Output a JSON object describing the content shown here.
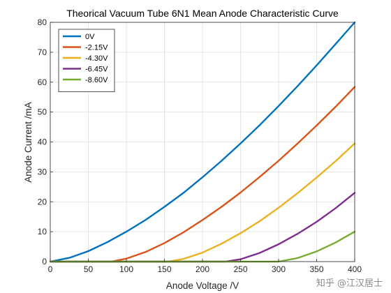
{
  "chart_data": {
    "type": "line",
    "title": "Theorical Vacuum Tube 6N1 Mean Anode Characteristic Curve",
    "xlabel": "Anode Voltage /V",
    "ylabel": "Anode Current /mA",
    "xlim": [
      0,
      400
    ],
    "ylim": [
      0,
      80
    ],
    "xticks": [
      0,
      50,
      100,
      150,
      200,
      250,
      300,
      350,
      400
    ],
    "yticks": [
      0,
      10,
      20,
      30,
      40,
      50,
      60,
      70,
      80
    ],
    "grid": true,
    "legend_position": "top-left",
    "series": [
      {
        "name": "0V",
        "color": "#0072BD",
        "x": [
          0,
          25,
          50,
          75,
          100,
          125,
          150,
          175,
          200,
          225,
          250,
          275,
          300,
          325,
          350,
          375,
          400
        ],
        "y": [
          0,
          1.25,
          3.5,
          6.5,
          10.0,
          13.9,
          18.3,
          23.0,
          28.2,
          33.7,
          39.5,
          45.6,
          52.0,
          58.7,
          65.6,
          72.8,
          80.0
        ]
      },
      {
        "name": "-2.15V",
        "color": "#D95319",
        "x": [
          80,
          100,
          125,
          150,
          175,
          200,
          225,
          250,
          275,
          300,
          325,
          350,
          375,
          400
        ],
        "y": [
          0,
          1.0,
          3.2,
          6.2,
          9.8,
          13.9,
          18.3,
          23.1,
          28.3,
          33.7,
          39.5,
          45.5,
          51.8,
          58.4
        ]
      },
      {
        "name": "-4.30V",
        "color": "#EDB120",
        "x": [
          155,
          175,
          200,
          225,
          250,
          275,
          300,
          325,
          350,
          375,
          400
        ],
        "y": [
          0,
          0.9,
          3.0,
          6.0,
          9.5,
          13.5,
          18.0,
          22.9,
          28.1,
          33.6,
          39.5
        ]
      },
      {
        "name": "-6.45V",
        "color": "#7E2F8E",
        "x": [
          230,
          250,
          275,
          300,
          325,
          350,
          375,
          400
        ],
        "y": [
          0,
          0.8,
          2.9,
          5.8,
          9.3,
          13.3,
          17.9,
          23.0
        ]
      },
      {
        "name": "-8.60V",
        "color": "#77AC30",
        "x": [
          300,
          325,
          350,
          375,
          400
        ],
        "y": [
          0,
          1.2,
          3.4,
          6.4,
          10.0
        ]
      }
    ]
  },
  "watermark": "知乎 @江汉居士"
}
